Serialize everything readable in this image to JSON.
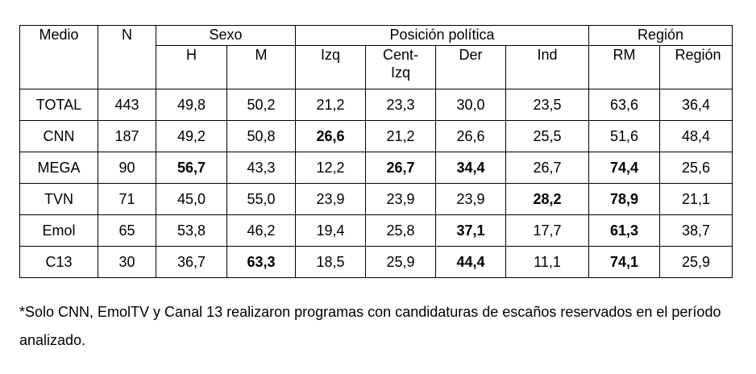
{
  "table": {
    "header": {
      "medio": "Medio",
      "n": "N",
      "groups": [
        {
          "label": "Sexo",
          "columns": [
            "H",
            "M"
          ]
        },
        {
          "label": "Posición política",
          "columns": [
            "Izq",
            "Cent-Izq",
            "Der",
            "Ind"
          ]
        },
        {
          "label": "Región",
          "columns": [
            "RM",
            "Región"
          ]
        }
      ]
    },
    "rows": [
      {
        "cells": [
          "TOTAL",
          "443",
          "49,8",
          "50,2",
          "21,2",
          "23,3",
          "30,0",
          "23,5",
          "63,6",
          "36,4"
        ],
        "bold": [
          false,
          false,
          false,
          false,
          false,
          false,
          false,
          false,
          false,
          false
        ]
      },
      {
        "cells": [
          "CNN",
          "187",
          "49,2",
          "50,8",
          "26,6",
          "21,2",
          "26,6",
          "25,5",
          "51,6",
          "48,4"
        ],
        "bold": [
          false,
          false,
          false,
          false,
          true,
          false,
          false,
          false,
          false,
          false
        ]
      },
      {
        "cells": [
          "MEGA",
          "90",
          "56,7",
          "43,3",
          "12,2",
          "26,7",
          "34,4",
          "26,7",
          "74,4",
          "25,6"
        ],
        "bold": [
          false,
          false,
          true,
          false,
          false,
          true,
          true,
          false,
          true,
          false
        ]
      },
      {
        "cells": [
          "TVN",
          "71",
          "45,0",
          "55,0",
          "23,9",
          "23,9",
          "23,9",
          "28,2",
          "78,9",
          "21,1"
        ],
        "bold": [
          false,
          false,
          false,
          false,
          false,
          false,
          false,
          true,
          true,
          false
        ]
      },
      {
        "cells": [
          "Emol",
          "65",
          "53,8",
          "46,2",
          "19,4",
          "25,8",
          "37,1",
          "17,7",
          "61,3",
          "38,7"
        ],
        "bold": [
          false,
          false,
          false,
          false,
          false,
          false,
          true,
          false,
          true,
          false
        ]
      },
      {
        "cells": [
          "C13",
          "30",
          "36,7",
          "63,3",
          "18,5",
          "25,9",
          "44,4",
          "11,1",
          "74,1",
          "25,9"
        ],
        "bold": [
          false,
          false,
          false,
          true,
          false,
          false,
          true,
          false,
          true,
          false
        ]
      }
    ]
  },
  "note": "*Solo CNN, EmolTV y Canal 13 realizaron programas con candidaturas de escaños reservados en el período analizado."
}
